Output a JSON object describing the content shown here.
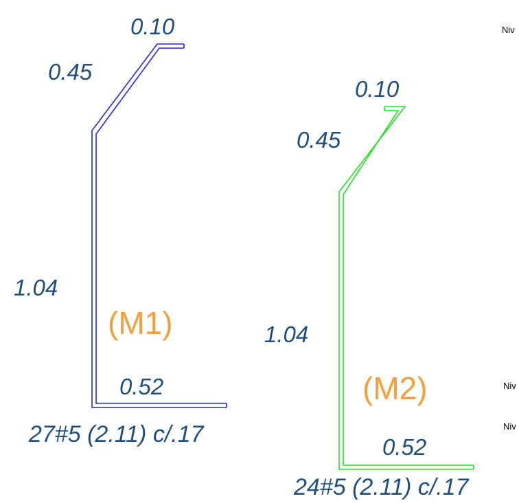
{
  "bar_m1": {
    "mark": "(M1)",
    "dim_hook": "0.10",
    "dim_incline": "0.45",
    "dim_vertical": "1.04",
    "dim_foot": "0.52",
    "spec": "27#5 (2.11) c/.17",
    "color": "#2525e0"
  },
  "bar_m2": {
    "mark": "(M2)",
    "dim_hook": "0.10",
    "dim_incline": "0.45",
    "dim_vertical": "1.04",
    "dim_foot": "0.52",
    "spec": "24#5 (2.11) c/.17",
    "color": "#22e022"
  },
  "level_labels": [
    "Niv",
    "Niv",
    "Niv"
  ],
  "colors": {
    "dimension_text": "#1f4e79",
    "mark_text": "#f2a03d"
  }
}
